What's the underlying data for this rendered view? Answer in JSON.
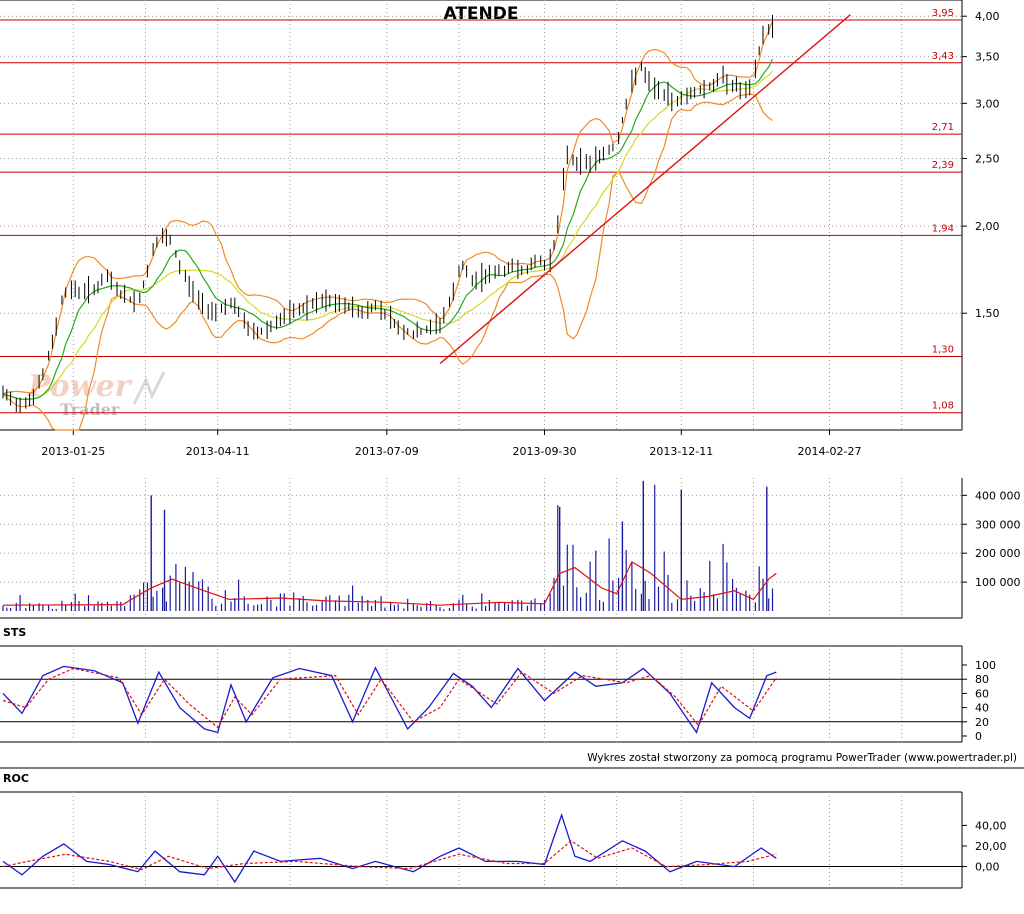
{
  "app": {
    "title": "ATENDE",
    "watermark_line1": "Power",
    "watermark_line2": "Trader",
    "credit": "Wykres został stworzony za pomocą programu PowerTrader (www.powertrader.pl)"
  },
  "colors": {
    "candles": "#000000",
    "bollinger": "#ee8c2a",
    "ma_short": "#2aa81f",
    "ma_long": "#d8d828",
    "support_levels": "#cc0000",
    "trend_line": "#e01010",
    "volume_bars": "#1a1aa0",
    "volume_avg": "#e01010",
    "oscillator_main": "#1a1ad0",
    "oscillator_signal": "#e01010",
    "grid": "#999999"
  },
  "chart_data": [
    {
      "panel": "price",
      "type": "ohlc",
      "title": "ATENDE",
      "y_scale": "log",
      "x_tick_labels": [
        "2013-01-25",
        "2013-04-11",
        "2013-07-09",
        "2013-09-30",
        "2013-12-11",
        "2014-02-27"
      ],
      "y_tick_labels": [
        "4,00",
        "3,50",
        "3,00",
        "2,50",
        "2,00",
        "1,50"
      ],
      "y_ticks": [
        4.0,
        3.5,
        3.0,
        2.5,
        2.0,
        1.5
      ],
      "ylim": [
        1.02,
        4.22
      ],
      "horizontal_levels": [
        {
          "label": "3,95",
          "value": 3.95
        },
        {
          "label": "3,43",
          "value": 3.43
        },
        {
          "label": "2,71",
          "value": 2.71
        },
        {
          "label": "2,39",
          "value": 2.39
        },
        {
          "label": "1,94",
          "value": 1.94
        },
        {
          "label": "1,30",
          "value": 1.3
        },
        {
          "label": "1,08",
          "value": 1.08
        }
      ],
      "trend_line": {
        "start": {
          "date": "2013-08-06",
          "value": 1.27
        },
        "end": {
          "date": "2014-03-10",
          "value": 4.02
        }
      },
      "overlays": [
        "Bollinger bands (orange)",
        "moving average (green)",
        "moving average (yellow)"
      ],
      "close_path": [
        [
          "2012-12-19",
          1.15
        ],
        [
          "2012-12-27",
          1.11
        ],
        [
          "2013-01-04",
          1.14
        ],
        [
          "2013-01-10",
          1.24
        ],
        [
          "2013-01-15",
          1.39
        ],
        [
          "2013-01-18",
          1.55
        ],
        [
          "2013-01-22",
          1.63
        ],
        [
          "2013-01-29",
          1.61
        ],
        [
          "2013-02-06",
          1.63
        ],
        [
          "2013-02-12",
          1.69
        ],
        [
          "2013-02-20",
          1.59
        ],
        [
          "2013-02-28",
          1.55
        ],
        [
          "2013-03-04",
          1.68
        ],
        [
          "2013-03-08",
          1.86
        ],
        [
          "2013-03-13",
          1.93
        ],
        [
          "2013-03-18",
          1.89
        ],
        [
          "2013-03-22",
          1.75
        ],
        [
          "2013-03-29",
          1.61
        ],
        [
          "2013-04-04",
          1.53
        ],
        [
          "2013-04-11",
          1.51
        ],
        [
          "2013-04-17",
          1.56
        ],
        [
          "2013-04-23",
          1.49
        ],
        [
          "2013-04-29",
          1.4
        ],
        [
          "2013-05-06",
          1.42
        ],
        [
          "2013-05-14",
          1.47
        ],
        [
          "2013-05-22",
          1.51
        ],
        [
          "2013-05-30",
          1.54
        ],
        [
          "2013-06-07",
          1.56
        ],
        [
          "2013-06-15",
          1.54
        ],
        [
          "2013-06-21",
          1.53
        ],
        [
          "2013-06-27",
          1.5
        ],
        [
          "2013-07-03",
          1.54
        ],
        [
          "2013-07-09",
          1.5
        ],
        [
          "2013-07-15",
          1.43
        ],
        [
          "2013-07-23",
          1.4
        ],
        [
          "2013-07-30",
          1.42
        ],
        [
          "2013-08-06",
          1.45
        ],
        [
          "2013-08-13",
          1.6
        ],
        [
          "2013-08-17",
          1.77
        ],
        [
          "2013-08-23",
          1.66
        ],
        [
          "2013-08-29",
          1.7
        ],
        [
          "2013-09-06",
          1.72
        ],
        [
          "2013-09-14",
          1.75
        ],
        [
          "2013-09-22",
          1.73
        ],
        [
          "2013-09-26",
          1.8
        ],
        [
          "2013-09-30",
          1.76
        ],
        [
          "2013-10-04",
          1.82
        ],
        [
          "2013-10-08",
          2.07
        ],
        [
          "2013-10-12",
          2.55
        ],
        [
          "2013-10-16",
          2.47
        ],
        [
          "2013-10-24",
          2.47
        ],
        [
          "2013-11-01",
          2.55
        ],
        [
          "2013-11-07",
          2.62
        ],
        [
          "2013-11-12",
          2.98
        ],
        [
          "2013-11-15",
          3.2
        ],
        [
          "2013-11-19",
          3.43
        ],
        [
          "2013-11-23",
          3.22
        ],
        [
          "2013-11-29",
          3.13
        ],
        [
          "2013-12-07",
          3.02
        ],
        [
          "2013-12-13",
          3.07
        ],
        [
          "2013-12-19",
          3.13
        ],
        [
          "2013-12-27",
          3.18
        ],
        [
          "2014-01-02",
          3.27
        ],
        [
          "2014-01-08",
          3.18
        ],
        [
          "2014-01-14",
          3.11
        ],
        [
          "2014-01-18",
          3.2
        ],
        [
          "2014-01-22",
          3.7
        ],
        [
          "2014-01-25",
          3.83
        ],
        [
          "2014-01-29",
          3.88
        ]
      ]
    },
    {
      "panel": "volume",
      "type": "bar",
      "y_tick_labels": [
        "400 000",
        "300 000",
        "200 000",
        "100 000"
      ],
      "y_ticks": [
        400000,
        300000,
        200000,
        100000
      ],
      "ylim": [
        0,
        460000
      ],
      "series_name": "volume",
      "notable_peaks": [
        [
          "2013-03-07",
          400000
        ],
        [
          "2013-03-14",
          350000
        ],
        [
          "2013-10-08",
          360000
        ],
        [
          "2013-11-10",
          310000
        ],
        [
          "2013-11-21",
          450000
        ],
        [
          "2013-12-11",
          420000
        ],
        [
          "2014-01-25",
          430000
        ]
      ],
      "moving_average_path": [
        [
          "2012-12-19",
          20000
        ],
        [
          "2013-02-20",
          22000
        ],
        [
          "2013-03-07",
          80000
        ],
        [
          "2013-03-18",
          110000
        ],
        [
          "2013-04-04",
          70000
        ],
        [
          "2013-04-17",
          40000
        ],
        [
          "2013-05-14",
          45000
        ],
        [
          "2013-06-07",
          35000
        ],
        [
          "2013-07-09",
          30000
        ],
        [
          "2013-08-06",
          20000
        ],
        [
          "2013-09-06",
          30000
        ],
        [
          "2013-09-30",
          25000
        ],
        [
          "2013-10-08",
          130000
        ],
        [
          "2013-10-16",
          150000
        ],
        [
          "2013-10-30",
          80000
        ],
        [
          "2013-11-07",
          60000
        ],
        [
          "2013-11-15",
          170000
        ],
        [
          "2013-11-25",
          130000
        ],
        [
          "2013-12-11",
          40000
        ],
        [
          "2013-12-25",
          50000
        ],
        [
          "2014-01-08",
          70000
        ],
        [
          "2014-01-18",
          40000
        ],
        [
          "2014-01-26",
          110000
        ],
        [
          "2014-01-30",
          130000
        ]
      ]
    },
    {
      "panel": "STS",
      "type": "line",
      "label": "STS",
      "y_tick_labels": [
        "100",
        "80",
        "60",
        "40",
        "20",
        "0"
      ],
      "y_ticks": [
        100,
        80,
        60,
        40,
        20,
        0
      ],
      "ylim": [
        0,
        100
      ],
      "reference_lines": [
        80,
        20
      ],
      "series": [
        {
          "role": "main",
          "points": [
            [
              "2012-12-19",
              60
            ],
            [
              "2012-12-29",
              32
            ],
            [
              "2013-01-09",
              85
            ],
            [
              "2013-01-20",
              98
            ],
            [
              "2013-02-05",
              92
            ],
            [
              "2013-02-20",
              75
            ],
            [
              "2013-02-28",
              18
            ],
            [
              "2013-03-11",
              90
            ],
            [
              "2013-03-22",
              40
            ],
            [
              "2013-04-04",
              10
            ],
            [
              "2013-04-11",
              5
            ],
            [
              "2013-04-18",
              72
            ],
            [
              "2013-04-26",
              20
            ],
            [
              "2013-05-10",
              82
            ],
            [
              "2013-05-24",
              95
            ],
            [
              "2013-06-10",
              85
            ],
            [
              "2013-06-21",
              20
            ],
            [
              "2013-07-03",
              96
            ],
            [
              "2013-07-20",
              10
            ],
            [
              "2013-07-31",
              40
            ],
            [
              "2013-08-13",
              88
            ],
            [
              "2013-08-23",
              70
            ],
            [
              "2013-09-02",
              40
            ],
            [
              "2013-09-16",
              95
            ],
            [
              "2013-09-30",
              50
            ],
            [
              "2013-10-16",
              90
            ],
            [
              "2013-10-27",
              70
            ],
            [
              "2013-11-10",
              75
            ],
            [
              "2013-11-21",
              95
            ],
            [
              "2013-12-05",
              60
            ],
            [
              "2013-12-19",
              5
            ],
            [
              "2013-12-27",
              75
            ],
            [
              "2014-01-08",
              40
            ],
            [
              "2014-01-16",
              25
            ],
            [
              "2014-01-25",
              85
            ],
            [
              "2014-01-30",
              90
            ]
          ]
        },
        {
          "role": "signal",
          "points": [
            [
              "2012-12-19",
              50
            ],
            [
              "2012-12-31",
              40
            ],
            [
              "2013-01-12",
              80
            ],
            [
              "2013-01-25",
              95
            ],
            [
              "2013-02-18",
              82
            ],
            [
              "2013-03-02",
              30
            ],
            [
              "2013-03-14",
              80
            ],
            [
              "2013-03-27",
              45
            ],
            [
              "2013-04-11",
              12
            ],
            [
              "2013-04-20",
              55
            ],
            [
              "2013-04-29",
              30
            ],
            [
              "2013-05-14",
              80
            ],
            [
              "2013-06-12",
              85
            ],
            [
              "2013-06-24",
              30
            ],
            [
              "2013-07-06",
              80
            ],
            [
              "2013-07-23",
              20
            ],
            [
              "2013-08-06",
              40
            ],
            [
              "2013-08-16",
              80
            ],
            [
              "2013-09-05",
              45
            ],
            [
              "2013-09-18",
              90
            ],
            [
              "2013-10-05",
              60
            ],
            [
              "2013-10-20",
              85
            ],
            [
              "2013-11-12",
              75
            ],
            [
              "2013-11-25",
              85
            ],
            [
              "2013-12-08",
              55
            ],
            [
              "2013-12-20",
              15
            ],
            [
              "2014-01-01",
              70
            ],
            [
              "2014-01-18",
              35
            ],
            [
              "2014-01-30",
              82
            ]
          ]
        }
      ]
    },
    {
      "panel": "ROC",
      "type": "line",
      "label": "ROC",
      "y_tick_labels": [
        "40,00",
        "20,00",
        "0,00"
      ],
      "y_ticks": [
        40,
        20,
        0
      ],
      "ylim": [
        -15,
        53
      ],
      "reference_lines": [
        0
      ],
      "series": [
        {
          "role": "main",
          "points": [
            [
              "2012-12-19",
              5
            ],
            [
              "2012-12-29",
              -8
            ],
            [
              "2013-01-09",
              10
            ],
            [
              "2013-01-20",
              22
            ],
            [
              "2013-02-01",
              5
            ],
            [
              "2013-02-13",
              2
            ],
            [
              "2013-02-28",
              -5
            ],
            [
              "2013-03-09",
              15
            ],
            [
              "2013-03-22",
              -5
            ],
            [
              "2013-04-04",
              -8
            ],
            [
              "2013-04-11",
              10
            ],
            [
              "2013-04-20",
              -15
            ],
            [
              "2013-04-30",
              15
            ],
            [
              "2013-05-14",
              5
            ],
            [
              "2013-06-04",
              8
            ],
            [
              "2013-06-21",
              -2
            ],
            [
              "2013-07-03",
              5
            ],
            [
              "2013-07-23",
              -5
            ],
            [
              "2013-08-06",
              10
            ],
            [
              "2013-08-16",
              18
            ],
            [
              "2013-08-30",
              5
            ],
            [
              "2013-09-16",
              5
            ],
            [
              "2013-09-30",
              2
            ],
            [
              "2013-10-09",
              50
            ],
            [
              "2013-10-16",
              10
            ],
            [
              "2013-10-24",
              5
            ],
            [
              "2013-11-10",
              25
            ],
            [
              "2013-11-22",
              15
            ],
            [
              "2013-12-05",
              -5
            ],
            [
              "2013-12-19",
              5
            ],
            [
              "2014-01-08",
              0
            ],
            [
              "2014-01-22",
              18
            ],
            [
              "2014-01-30",
              8
            ]
          ]
        },
        {
          "role": "signal",
          "points": [
            [
              "2012-12-19",
              0
            ],
            [
              "2013-01-01",
              5
            ],
            [
              "2013-01-21",
              12
            ],
            [
              "2013-02-13",
              5
            ],
            [
              "2013-03-02",
              -3
            ],
            [
              "2013-03-16",
              10
            ],
            [
              "2013-04-06",
              -2
            ],
            [
              "2013-04-25",
              3
            ],
            [
              "2013-05-22",
              5
            ],
            [
              "2013-06-25",
              0
            ],
            [
              "2013-07-21",
              -2
            ],
            [
              "2013-08-16",
              12
            ],
            [
              "2013-09-10",
              3
            ],
            [
              "2013-09-30",
              3
            ],
            [
              "2013-10-14",
              25
            ],
            [
              "2013-10-28",
              8
            ],
            [
              "2013-11-15",
              18
            ],
            [
              "2013-12-03",
              0
            ],
            [
              "2013-12-25",
              2
            ],
            [
              "2014-01-15",
              5
            ],
            [
              "2014-01-30",
              12
            ]
          ]
        }
      ]
    }
  ]
}
